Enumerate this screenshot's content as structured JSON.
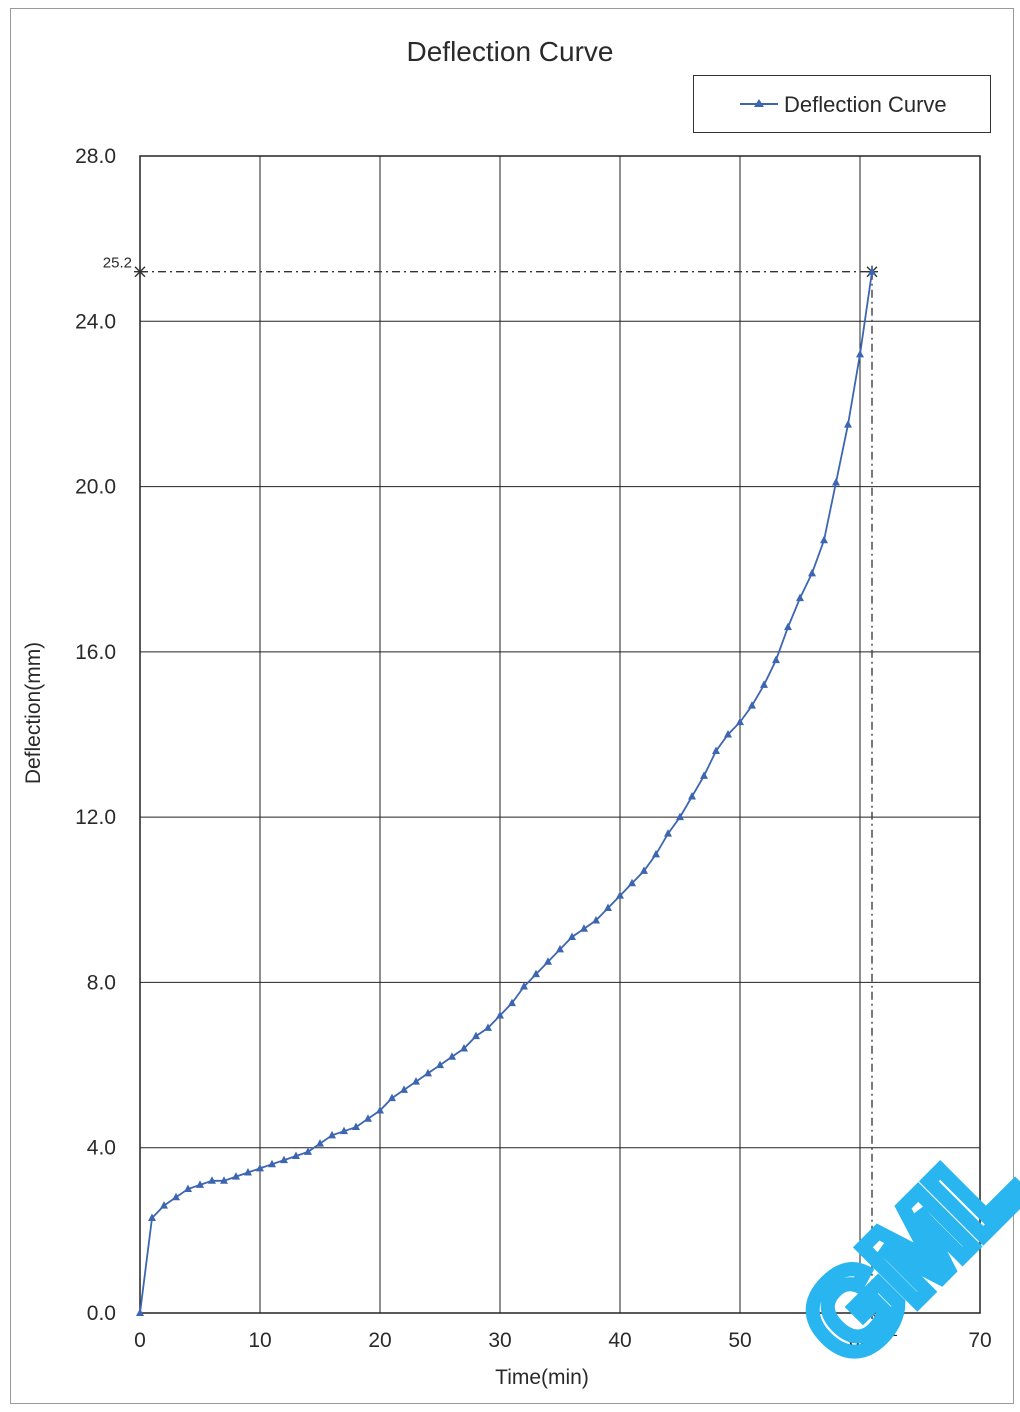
{
  "chart_data": {
    "type": "line",
    "title": "Deflection Curve",
    "xlabel": "Time(min)",
    "ylabel": "Deflection(mm)",
    "xlim": [
      0,
      70
    ],
    "ylim": [
      0,
      28
    ],
    "x_ticks": [
      "0",
      "10",
      "20",
      "30",
      "40",
      "50",
      "60",
      "70"
    ],
    "y_ticks": [
      "0.0",
      "4.0",
      "8.0",
      "12.0",
      "16.0",
      "20.0",
      "24.0",
      "28.0"
    ],
    "grid": true,
    "legend_position": "top-right",
    "series": [
      {
        "name": "Deflection Curve",
        "color": "#3d66b2",
        "marker": "triangle",
        "points": [
          [
            0,
            0.0
          ],
          [
            1,
            2.3
          ],
          [
            2,
            2.6
          ],
          [
            3,
            2.8
          ],
          [
            4,
            3.0
          ],
          [
            5,
            3.1
          ],
          [
            6,
            3.2
          ],
          [
            7,
            3.2
          ],
          [
            8,
            3.3
          ],
          [
            9,
            3.4
          ],
          [
            10,
            3.5
          ],
          [
            11,
            3.6
          ],
          [
            12,
            3.7
          ],
          [
            13,
            3.8
          ],
          [
            14,
            3.9
          ],
          [
            15,
            4.1
          ],
          [
            16,
            4.3
          ],
          [
            17,
            4.4
          ],
          [
            18,
            4.5
          ],
          [
            19,
            4.7
          ],
          [
            20,
            4.9
          ],
          [
            21,
            5.2
          ],
          [
            22,
            5.4
          ],
          [
            23,
            5.6
          ],
          [
            24,
            5.8
          ],
          [
            25,
            6.0
          ],
          [
            26,
            6.2
          ],
          [
            27,
            6.4
          ],
          [
            28,
            6.7
          ],
          [
            29,
            6.9
          ],
          [
            30,
            7.2
          ],
          [
            31,
            7.5
          ],
          [
            32,
            7.9
          ],
          [
            33,
            8.2
          ],
          [
            34,
            8.5
          ],
          [
            35,
            8.8
          ],
          [
            36,
            9.1
          ],
          [
            37,
            9.3
          ],
          [
            38,
            9.5
          ],
          [
            39,
            9.8
          ],
          [
            40,
            10.1
          ],
          [
            41,
            10.4
          ],
          [
            42,
            10.7
          ],
          [
            43,
            11.1
          ],
          [
            44,
            11.6
          ],
          [
            45,
            12.0
          ],
          [
            46,
            12.5
          ],
          [
            47,
            13.0
          ],
          [
            48,
            13.6
          ],
          [
            49,
            14.0
          ],
          [
            50,
            14.3
          ],
          [
            51,
            14.7
          ],
          [
            52,
            15.2
          ],
          [
            53,
            15.8
          ],
          [
            54,
            16.6
          ],
          [
            55,
            17.3
          ],
          [
            56,
            17.9
          ],
          [
            57,
            18.7
          ],
          [
            58,
            20.1
          ],
          [
            59,
            21.5
          ],
          [
            60,
            23.2
          ],
          [
            61,
            25.2
          ]
        ]
      }
    ],
    "annotations": [
      {
        "text": "25.2",
        "x": 0,
        "y": 25.2
      },
      {
        "text": "61",
        "x": 61,
        "y": 0
      }
    ],
    "reference_lines": {
      "x": 61,
      "y": 25.2,
      "color": "#333333",
      "style": "dash-dot"
    }
  },
  "watermark": {
    "text": "GML",
    "color": "#29b6f0"
  }
}
